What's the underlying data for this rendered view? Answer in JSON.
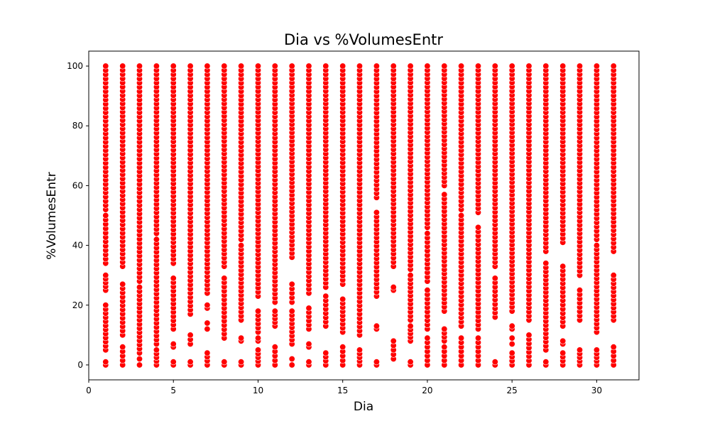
{
  "chart_data": {
    "type": "scatter",
    "title": "Dia vs %VolumesEntr",
    "xlabel": "Dia",
    "ylabel": "%VolumesEntr",
    "xlim": [
      0,
      32.5
    ],
    "ylim": [
      -5,
      105
    ],
    "x_ticks": [
      0,
      5,
      10,
      15,
      20,
      25,
      30
    ],
    "y_ticks": [
      0,
      20,
      40,
      60,
      80,
      100
    ],
    "grid": false,
    "marker_color": "#ff0000",
    "marker_edge_color": "#ffffff",
    "series": [
      {
        "name": "%VolumesEntr",
        "columns": [
          {
            "x": 1,
            "bands": [
              [
                0,
                1
              ],
              [
                5,
                20
              ],
              [
                25,
                30
              ],
              [
                34,
                50
              ],
              [
                52,
                100
              ]
            ]
          },
          {
            "x": 2,
            "bands": [
              [
                0,
                6
              ],
              [
                10,
                27
              ],
              [
                33,
                100
              ]
            ]
          },
          {
            "x": 3,
            "bands": [
              [
                0,
                2
              ],
              [
                4,
                26
              ],
              [
                28,
                100
              ]
            ]
          },
          {
            "x": 4,
            "bands": [
              [
                0,
                5
              ],
              [
                7,
                42
              ],
              [
                44,
                100
              ]
            ]
          },
          {
            "x": 5,
            "bands": [
              [
                0,
                1
              ],
              [
                6,
                7
              ],
              [
                12,
                29
              ],
              [
                34,
                100
              ]
            ]
          },
          {
            "x": 6,
            "bands": [
              [
                0,
                1
              ],
              [
                7,
                10
              ],
              [
                17,
                100
              ]
            ]
          },
          {
            "x": 7,
            "bands": [
              [
                0,
                4
              ],
              [
                12,
                14
              ],
              [
                19,
                20
              ],
              [
                24,
                100
              ]
            ]
          },
          {
            "x": 8,
            "bands": [
              [
                0,
                1
              ],
              [
                9,
                29
              ],
              [
                33,
                100
              ]
            ]
          },
          {
            "x": 9,
            "bands": [
              [
                0,
                1
              ],
              [
                8,
                9
              ],
              [
                15,
                40
              ],
              [
                42,
                100
              ]
            ]
          },
          {
            "x": 10,
            "bands": [
              [
                0,
                5
              ],
              [
                8,
                9
              ],
              [
                11,
                18
              ],
              [
                23,
                100
              ]
            ]
          },
          {
            "x": 11,
            "bands": [
              [
                0,
                6
              ],
              [
                13,
                18
              ],
              [
                21,
                100
              ]
            ]
          },
          {
            "x": 12,
            "bands": [
              [
                0,
                2
              ],
              [
                7,
                18
              ],
              [
                21,
                27
              ],
              [
                36,
                100
              ]
            ]
          },
          {
            "x": 13,
            "bands": [
              [
                0,
                1
              ],
              [
                6,
                7
              ],
              [
                12,
                19
              ],
              [
                24,
                100
              ]
            ]
          },
          {
            "x": 14,
            "bands": [
              [
                0,
                4
              ],
              [
                13,
                23
              ],
              [
                26,
                100
              ]
            ]
          },
          {
            "x": 15,
            "bands": [
              [
                0,
                6
              ],
              [
                11,
                22
              ],
              [
                27,
                100
              ]
            ]
          },
          {
            "x": 16,
            "bands": [
              [
                0,
                5
              ],
              [
                10,
                100
              ]
            ]
          },
          {
            "x": 17,
            "bands": [
              [
                0,
                1
              ],
              [
                12,
                13
              ],
              [
                23,
                51
              ],
              [
                56,
                100
              ]
            ]
          },
          {
            "x": 18,
            "bands": [
              [
                2,
                8
              ],
              [
                25,
                26
              ],
              [
                33,
                100
              ]
            ]
          },
          {
            "x": 19,
            "bands": [
              [
                0,
                1
              ],
              [
                8,
                13
              ],
              [
                15,
                30
              ],
              [
                32,
                100
              ]
            ]
          },
          {
            "x": 20,
            "bands": [
              [
                0,
                9
              ],
              [
                12,
                25
              ],
              [
                28,
                44
              ],
              [
                46,
                100
              ]
            ]
          },
          {
            "x": 21,
            "bands": [
              [
                0,
                6
              ],
              [
                8,
                12
              ],
              [
                18,
                57
              ],
              [
                60,
                100
              ]
            ]
          },
          {
            "x": 22,
            "bands": [
              [
                0,
                9
              ],
              [
                13,
                50
              ],
              [
                52,
                100
              ]
            ]
          },
          {
            "x": 23,
            "bands": [
              [
                0,
                9
              ],
              [
                12,
                46
              ],
              [
                51,
                100
              ]
            ]
          },
          {
            "x": 24,
            "bands": [
              [
                0,
                1
              ],
              [
                16,
                29
              ],
              [
                33,
                100
              ]
            ]
          },
          {
            "x": 25,
            "bands": [
              [
                0,
                4
              ],
              [
                7,
                9
              ],
              [
                12,
                13
              ],
              [
                18,
                100
              ]
            ]
          },
          {
            "x": 26,
            "bands": [
              [
                0,
                10
              ],
              [
                15,
                100
              ]
            ]
          },
          {
            "x": 27,
            "bands": [
              [
                0,
                1
              ],
              [
                5,
                34
              ],
              [
                38,
                100
              ]
            ]
          },
          {
            "x": 28,
            "bands": [
              [
                0,
                4
              ],
              [
                7,
                8
              ],
              [
                13,
                33
              ],
              [
                41,
                100
              ]
            ]
          },
          {
            "x": 29,
            "bands": [
              [
                0,
                5
              ],
              [
                15,
                25
              ],
              [
                30,
                100
              ]
            ]
          },
          {
            "x": 30,
            "bands": [
              [
                0,
                5
              ],
              [
                11,
                40
              ],
              [
                42,
                100
              ]
            ]
          },
          {
            "x": 31,
            "bands": [
              [
                0,
                6
              ],
              [
                15,
                30
              ],
              [
                38,
                100
              ]
            ]
          }
        ]
      }
    ]
  }
}
